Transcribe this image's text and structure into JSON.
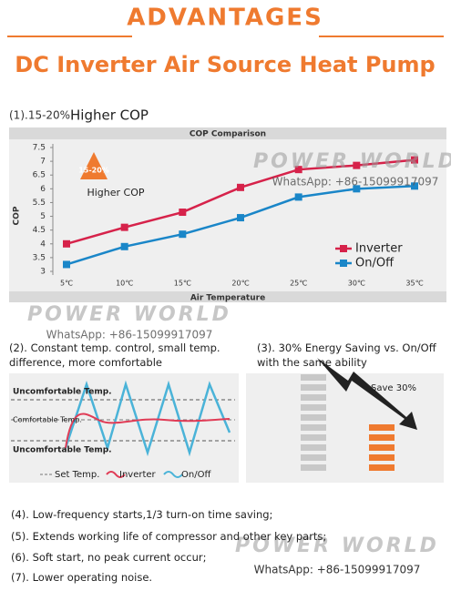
{
  "header": {
    "title": "ADVANTAGES",
    "subtitle": "DC Inverter Air Source Heat Pump"
  },
  "section1": {
    "label": "(1).15-20%",
    "heading": "Higher COP"
  },
  "chart_data": {
    "type": "line",
    "title": "COP Comparison",
    "x_label": "Air Temperature",
    "y_label": "COP",
    "categories": [
      "5℃",
      "10℃",
      "15℃",
      "20℃",
      "25℃",
      "30℃",
      "35℃"
    ],
    "series": [
      {
        "name": "Inverter",
        "color": "#d6224a",
        "values": [
          4.0,
          4.6,
          5.15,
          6.05,
          6.7,
          6.85,
          7.05
        ]
      },
      {
        "name": "On/Off",
        "color": "#1a86c8",
        "values": [
          3.25,
          3.9,
          4.35,
          4.95,
          5.7,
          6.0,
          6.1
        ]
      }
    ],
    "ylim": [
      3,
      7.5
    ],
    "yticks": [
      3,
      3.5,
      4,
      4.5,
      5,
      5.5,
      6,
      6.5,
      7,
      7.5
    ],
    "grid": false,
    "legend": "lower right",
    "annotations": {
      "badge": "15-20%",
      "text": "Higher COP"
    }
  },
  "section2": {
    "heading": "(2). Constant temp. control, small temp. difference, more comfortable",
    "upper": "Uncomfortable Temp.",
    "middle": "Comfortable Temp.",
    "lower": "Uncomfortable Temp.",
    "legend": [
      "Set Temp.",
      "Inverter",
      "On/Off"
    ]
  },
  "section3": {
    "heading": "(3). 30%  Energy Saving vs. On/Off with the same ability",
    "note": "Save 30%"
  },
  "list": [
    "(4). Low-frequency starts,1/3 turn-on time saving;",
    "(5). Extends working life of compressor and other key parts;",
    "(6). Soft start, no peak current occur;",
    "(7). Lower operating noise."
  ],
  "watermarks": [
    {
      "brand": "POWER WORLD",
      "contact": "WhatsApp: +86-15099917097"
    },
    {
      "brand": "POWER WORLD",
      "contact": "WhatsApp: +86-15099917097"
    },
    {
      "brand": "POWER WORLD",
      "contact": "WhatsApp: +86-15099917097"
    }
  ]
}
